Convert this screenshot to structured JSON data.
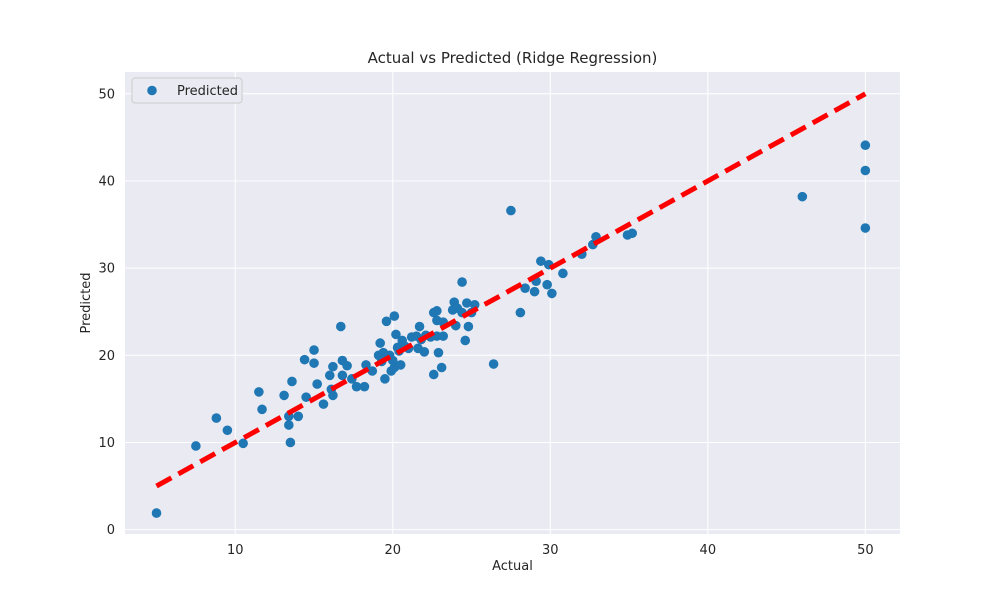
{
  "colors": {
    "background": "#eaeaf2",
    "grid": "#ffffff",
    "points": "#1f77b4",
    "reference_line": "#ff0000"
  },
  "chart_data": {
    "type": "scatter",
    "title": "Actual vs Predicted (Ridge Regression)",
    "xlabel": "Actual",
    "ylabel": "Predicted",
    "xlim": [
      3.0,
      52.2
    ],
    "ylim": [
      -0.5,
      52.5
    ],
    "xticks": [
      10,
      20,
      30,
      40,
      50
    ],
    "yticks": [
      0,
      10,
      20,
      30,
      40,
      50
    ],
    "grid": true,
    "legend": {
      "placement": "top-left",
      "entries": [
        "Predicted"
      ]
    },
    "series": [
      {
        "name": "Predicted",
        "marker": "circle",
        "points": [
          [
            5.0,
            1.9
          ],
          [
            7.5,
            9.6
          ],
          [
            8.8,
            12.8
          ],
          [
            9.5,
            11.4
          ],
          [
            10.5,
            9.9
          ],
          [
            11.5,
            15.8
          ],
          [
            11.7,
            13.8
          ],
          [
            13.1,
            15.4
          ],
          [
            13.4,
            12.0
          ],
          [
            13.4,
            13.0
          ],
          [
            13.5,
            10.0
          ],
          [
            13.6,
            17.0
          ],
          [
            14.0,
            13.0
          ],
          [
            14.4,
            19.5
          ],
          [
            14.5,
            15.2
          ],
          [
            15.0,
            20.6
          ],
          [
            15.0,
            19.1
          ],
          [
            15.2,
            16.7
          ],
          [
            15.6,
            14.4
          ],
          [
            16.0,
            17.7
          ],
          [
            16.1,
            16.1
          ],
          [
            16.2,
            18.7
          ],
          [
            16.2,
            15.4
          ],
          [
            16.7,
            23.3
          ],
          [
            16.8,
            17.7
          ],
          [
            16.8,
            19.4
          ],
          [
            17.1,
            18.8
          ],
          [
            17.4,
            17.3
          ],
          [
            17.7,
            16.4
          ],
          [
            18.2,
            16.4
          ],
          [
            18.3,
            18.9
          ],
          [
            18.7,
            18.2
          ],
          [
            19.1,
            20.0
          ],
          [
            19.2,
            21.4
          ],
          [
            19.3,
            19.3
          ],
          [
            19.4,
            20.3
          ],
          [
            19.5,
            17.3
          ],
          [
            19.6,
            23.9
          ],
          [
            19.8,
            20.0
          ],
          [
            19.9,
            18.2
          ],
          [
            20.0,
            19.4
          ],
          [
            20.1,
            24.5
          ],
          [
            20.1,
            18.6
          ],
          [
            20.2,
            22.4
          ],
          [
            20.3,
            20.9
          ],
          [
            20.4,
            20.5
          ],
          [
            20.5,
            18.9
          ],
          [
            20.6,
            21.7
          ],
          [
            20.8,
            21.0
          ],
          [
            21.0,
            20.8
          ],
          [
            21.2,
            22.1
          ],
          [
            21.5,
            22.2
          ],
          [
            21.6,
            20.8
          ],
          [
            21.7,
            23.3
          ],
          [
            21.8,
            21.8
          ],
          [
            22.0,
            20.4
          ],
          [
            22.1,
            22.3
          ],
          [
            22.4,
            22.1
          ],
          [
            22.6,
            17.8
          ],
          [
            22.6,
            24.9
          ],
          [
            22.8,
            22.2
          ],
          [
            22.8,
            25.1
          ],
          [
            22.8,
            24.0
          ],
          [
            22.9,
            20.3
          ],
          [
            23.1,
            18.6
          ],
          [
            23.2,
            23.8
          ],
          [
            23.2,
            22.2
          ],
          [
            23.8,
            25.2
          ],
          [
            23.9,
            26.1
          ],
          [
            24.0,
            23.4
          ],
          [
            24.1,
            25.4
          ],
          [
            24.4,
            28.4
          ],
          [
            24.4,
            24.9
          ],
          [
            24.6,
            21.7
          ],
          [
            24.7,
            26.0
          ],
          [
            24.8,
            23.3
          ],
          [
            25.0,
            24.9
          ],
          [
            25.2,
            25.8
          ],
          [
            26.4,
            19.0
          ],
          [
            27.5,
            36.6
          ],
          [
            28.1,
            24.9
          ],
          [
            28.4,
            27.7
          ],
          [
            29.0,
            27.3
          ],
          [
            29.1,
            28.5
          ],
          [
            29.4,
            30.8
          ],
          [
            29.8,
            28.1
          ],
          [
            29.9,
            30.4
          ],
          [
            30.1,
            27.1
          ],
          [
            30.8,
            29.4
          ],
          [
            32.0,
            31.6
          ],
          [
            32.7,
            32.7
          ],
          [
            32.9,
            33.6
          ],
          [
            34.9,
            33.8
          ],
          [
            35.2,
            34.0
          ],
          [
            46.0,
            38.2
          ],
          [
            50.0,
            44.1
          ],
          [
            50.0,
            41.2
          ],
          [
            50.0,
            34.6
          ]
        ]
      }
    ],
    "reference_line": {
      "style": "dashed",
      "x": [
        5.0,
        50.0
      ],
      "y": [
        5.0,
        50.0
      ]
    }
  }
}
